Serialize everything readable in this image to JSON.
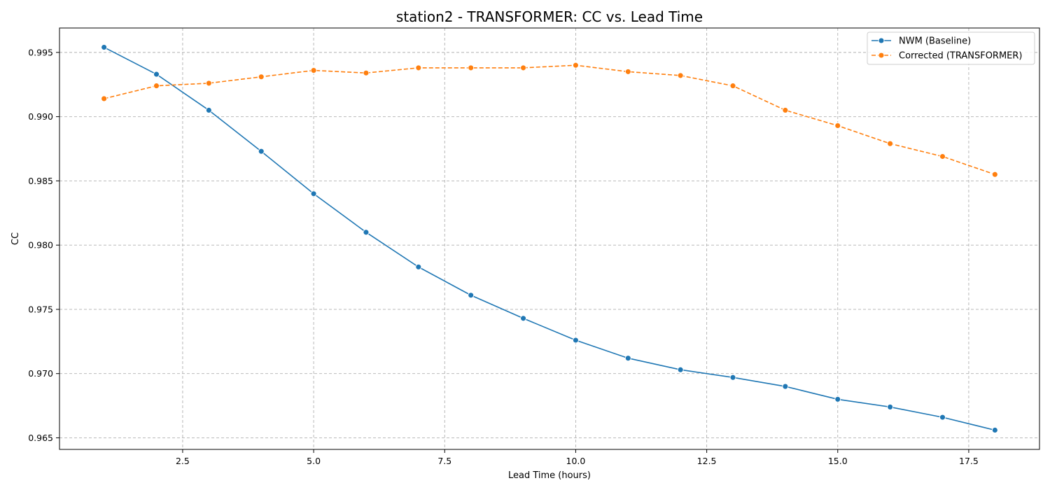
{
  "chart_data": {
    "type": "line",
    "title": "station2 - TRANSFORMER: CC vs. Lead Time",
    "xlabel": "Lead Time (hours)",
    "ylabel": "CC",
    "xlim": [
      0.15,
      18.85
    ],
    "ylim": [
      0.9641,
      0.9969
    ],
    "xticks": [
      2.5,
      5.0,
      7.5,
      10.0,
      12.5,
      15.0,
      17.5
    ],
    "xtick_labels": [
      "2.5",
      "5.0",
      "7.5",
      "10.0",
      "12.5",
      "15.0",
      "17.5"
    ],
    "yticks": [
      0.965,
      0.97,
      0.975,
      0.98,
      0.985,
      0.99,
      0.995
    ],
    "ytick_labels": [
      "0.965",
      "0.970",
      "0.975",
      "0.980",
      "0.985",
      "0.990",
      "0.995"
    ],
    "grid": true,
    "legend_position": "top-right",
    "x": [
      1,
      2,
      3,
      4,
      5,
      6,
      7,
      8,
      9,
      10,
      11,
      12,
      13,
      14,
      15,
      16,
      17,
      18
    ],
    "series": [
      {
        "name": "NWM (Baseline)",
        "color": "#1f77b4",
        "linestyle": "solid",
        "marker": "circle",
        "values": [
          0.9954,
          0.9933,
          0.9905,
          0.9873,
          0.984,
          0.981,
          0.9783,
          0.9761,
          0.9743,
          0.9726,
          0.9712,
          0.9703,
          0.9697,
          0.969,
          0.968,
          0.9674,
          0.9666,
          0.9656
        ]
      },
      {
        "name": "Corrected (TRANSFORMER)",
        "color": "#ff7f0e",
        "linestyle": "dashed",
        "marker": "circle",
        "values": [
          0.9914,
          0.9924,
          0.9926,
          0.9931,
          0.9936,
          0.9934,
          0.9938,
          0.9938,
          0.9938,
          0.994,
          0.9935,
          0.9932,
          0.9924,
          0.9905,
          0.9893,
          0.9879,
          0.9869,
          0.9855
        ]
      }
    ]
  }
}
